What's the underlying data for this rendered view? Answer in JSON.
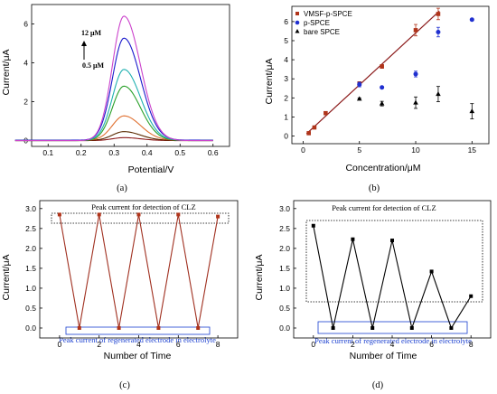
{
  "panels": [
    {
      "caption": "(a)"
    },
    {
      "caption": "(b)"
    },
    {
      "caption": "(c)"
    },
    {
      "caption": "(d)"
    }
  ],
  "chart_data": [
    {
      "type": "line",
      "xlabel": "Potential/V",
      "ylabel": "Current/μA",
      "xlim": [
        0.05,
        0.65
      ],
      "ylim": [
        -0.3,
        7
      ],
      "xticks": [
        "0.1",
        "0.2",
        "0.3",
        "0.4",
        "0.5",
        "0.6"
      ],
      "yticks": [
        "0",
        "2",
        "4",
        "6"
      ],
      "annotation_top": "12 μM",
      "annotation_bottom": "0.5 μM",
      "curve_x_range": [
        0.0,
        0.6
      ],
      "peak_potential": 0.33,
      "series": [
        {
          "color": "#8b1a1a",
          "peak": 0.15
        },
        {
          "color": "#5a2a00",
          "peak": 0.45
        },
        {
          "color": "#e07030",
          "peak": 1.25
        },
        {
          "color": "#2aa02a",
          "peak": 2.8
        },
        {
          "color": "#1fb0b0",
          "peak": 3.65
        },
        {
          "color": "#1a1acc",
          "peak": 5.25
        },
        {
          "color": "#cc44cc",
          "peak": 6.4
        }
      ]
    },
    {
      "type": "scatter",
      "xlabel": "Concentration/μM",
      "ylabel": "Current/μA",
      "xlim": [
        -1,
        16.5
      ],
      "ylim": [
        -0.4,
        6.8
      ],
      "xticks": [
        "0",
        "5",
        "10",
        "15"
      ],
      "yticks": [
        "0",
        "1",
        "2",
        "3",
        "4",
        "5",
        "6"
      ],
      "legend_position": "top-left",
      "series": [
        {
          "name": "VMSF-p-SPCE",
          "color": "#b0341a",
          "marker": "square",
          "x": [
            0.5,
            1,
            2,
            5,
            7,
            10,
            12
          ],
          "y": [
            0.15,
            0.45,
            1.2,
            2.75,
            3.65,
            5.55,
            6.4
          ],
          "err": [
            0.05,
            0.05,
            0.08,
            0.1,
            0.1,
            0.3,
            0.3
          ]
        },
        {
          "name": "p-SPCE",
          "color": "#2030d0",
          "marker": "circle",
          "x": [
            5,
            7,
            10,
            12,
            15
          ],
          "y": [
            2.7,
            2.55,
            3.25,
            5.45,
            6.1
          ],
          "err": [
            0.12,
            0.05,
            0.15,
            0.25,
            0.05
          ]
        },
        {
          "name": "bare SPCE",
          "color": "#000000",
          "marker": "triangle",
          "x": [
            5,
            7,
            10,
            12,
            15
          ],
          "y": [
            1.95,
            1.7,
            1.75,
            2.2,
            1.3
          ],
          "err": [
            0.05,
            0.12,
            0.3,
            0.4,
            0.4
          ]
        }
      ],
      "fit": {
        "color": "#8b1a1a",
        "x": [
          0.3,
          12.1
        ],
        "y": [
          0.12,
          6.55
        ]
      }
    },
    {
      "type": "line",
      "xlabel": "Number of Time",
      "ylabel": "Current/μA",
      "xlim": [
        -1,
        9
      ],
      "ylim": [
        -0.25,
        3.2
      ],
      "xticks": [
        "0",
        "2",
        "4",
        "6",
        "8"
      ],
      "yticks": [
        "0.0",
        "0.5",
        "1.0",
        "1.5",
        "2.0",
        "2.5",
        "3.0"
      ],
      "line_color": "#a03020",
      "marker_color": "#b0341a",
      "x": [
        0,
        1,
        2,
        3,
        4,
        5,
        6,
        7,
        8
      ],
      "y": [
        2.85,
        0.0,
        2.85,
        0.0,
        2.85,
        0.0,
        2.85,
        0.0,
        2.8
      ],
      "peak_label": "Peak current for detection of CLZ",
      "regen_label": "Peak current of regenerated electrode in electrolyte"
    },
    {
      "type": "line",
      "xlabel": "Number of Time",
      "ylabel": "Current/μA",
      "xlim": [
        -1,
        9
      ],
      "ylim": [
        -0.25,
        3.2
      ],
      "xticks": [
        "0",
        "2",
        "4",
        "6",
        "8"
      ],
      "yticks": [
        "0.0",
        "0.5",
        "1.0",
        "1.5",
        "2.0",
        "2.5",
        "3.0"
      ],
      "line_color": "#000000",
      "marker_color": "#000000",
      "x": [
        0,
        1,
        2,
        3,
        4,
        5,
        6,
        7,
        8
      ],
      "y": [
        2.57,
        0.0,
        2.23,
        0.0,
        2.2,
        0.0,
        1.42,
        0.0,
        0.8
      ],
      "peak_label": "Peak current for detection of CLZ",
      "regen_label": "Peak current of regenerated electrode in electrolyte"
    }
  ]
}
